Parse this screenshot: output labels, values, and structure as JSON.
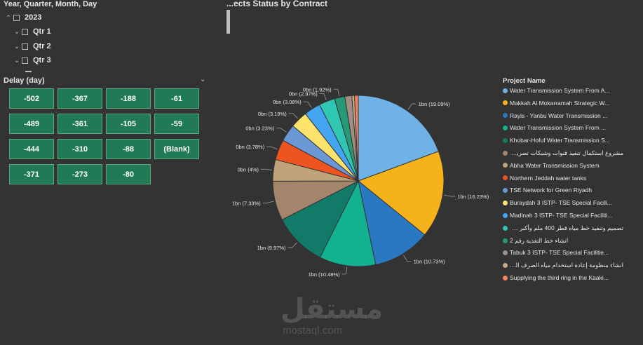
{
  "date_slicer": {
    "title": "Year, Quarter, Month, Day",
    "items": [
      {
        "label": "2023",
        "expanded": true
      },
      {
        "label": "Qtr 1",
        "expanded": false
      },
      {
        "label": "Qtr 2",
        "expanded": false
      },
      {
        "label": "Qtr 3",
        "expanded": false
      }
    ]
  },
  "delay_slicer": {
    "title": "Delay (day)",
    "tiles": [
      "-502",
      "-367",
      "-188",
      "-61",
      "-489",
      "-361",
      "-105",
      "-59",
      "-444",
      "-310",
      "-88",
      "(Blank)",
      "-371",
      "-273",
      "-80"
    ]
  },
  "chart_data": {
    "type": "pie",
    "title": "...ects Status by Contract",
    "legend_title": "Project Name",
    "legend_position": "right",
    "start_angle": 0,
    "series": [
      {
        "name": "Water Transmission System From A...",
        "label": "1bn (19.09%)",
        "percent": 19.09,
        "color": "#6fb3e6",
        "rtl": false
      },
      {
        "name": "Makkah Al Mokarramah Strategic W...",
        "label": "1bn (16.23%)",
        "percent": 16.23,
        "color": "#f5b21b",
        "rtl": false
      },
      {
        "name": "Rayis - Yanbu Water Transmission ...",
        "label": "1bn (10.73%)",
        "percent": 10.73,
        "color": "#2a78c2",
        "rtl": false
      },
      {
        "name": "Water Transmission System From ...",
        "label": "1bn (10.48%)",
        "percent": 10.48,
        "color": "#12b290",
        "rtl": false
      },
      {
        "name": "Khobar-Hofuf Water Transmission S...",
        "label": "1bn (9.97%)",
        "percent": 9.97,
        "color": "#127a68",
        "rtl": false
      },
      {
        "name": "مشروع استكمال تنفيذ قنوات وشبكات تصريف مياه...",
        "label": "1bn (7.33%)",
        "percent": 7.33,
        "color": "#a3856b",
        "rtl": true
      },
      {
        "name": "Abha Water Transmission System",
        "label": "0bn (4%)",
        "percent": 4.0,
        "color": "#bfa47a",
        "rtl": false
      },
      {
        "name": "Northern Jeddah water tanks",
        "label": "0bn (3.78%)",
        "percent": 3.78,
        "color": "#ee5420",
        "rtl": false
      },
      {
        "name": "TSE Network for Green Riyadh",
        "label": "0bn (3.23%)",
        "percent": 3.23,
        "color": "#6a98d4",
        "rtl": false
      },
      {
        "name": "Buraydah 3 ISTP- TSE Special Facili...",
        "label": "0bn (3.19%)",
        "percent": 3.19,
        "color": "#fde36c",
        "rtl": false
      },
      {
        "name": "Madinah 3 ISTP- TSE Special Faciliti...",
        "label": "0bn (3.08%)",
        "percent": 3.08,
        "color": "#44a5f2",
        "rtl": false
      },
      {
        "name": "تصميم وتنفيذ خط مياه قطر 400 ملم وأكبر من ال...",
        "label": "0bn (2.97%)",
        "percent": 2.97,
        "color": "#2fc7b3",
        "rtl": true
      },
      {
        "name": "انشاء خط التغذية رقم 2",
        "label": "0bn (1.92%)",
        "percent": 1.92,
        "color": "#279977",
        "rtl": true
      },
      {
        "name": "Tabuk 3 ISTP- TSE Special Facilitie...",
        "label": "",
        "percent": 1.3,
        "color": "#a28f84",
        "rtl": false
      },
      {
        "name": "انشاء منظومة إعادة استخدام مياه الصرف الصحي",
        "label": "",
        "percent": 0.5,
        "color": "#c7a98b",
        "rtl": true
      },
      {
        "name": "Supplying the third ring in the Kaaki...",
        "label": "",
        "percent": 0.7,
        "color": "#f4845c",
        "rtl": false
      }
    ]
  },
  "watermark": {
    "arabic": "مستقل",
    "latin": "mostaql.com"
  }
}
